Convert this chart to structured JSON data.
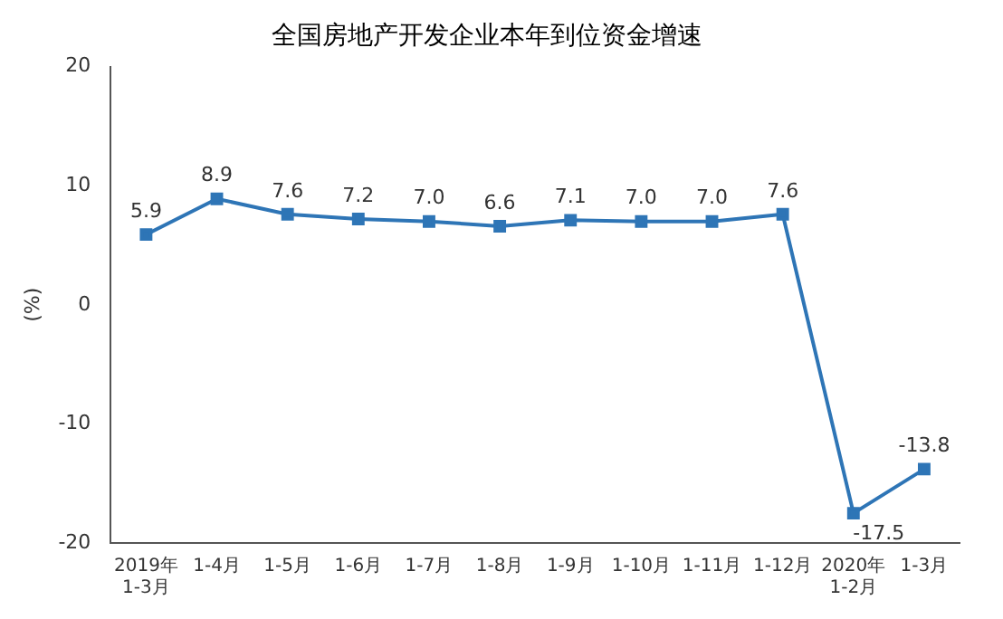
{
  "chart_data": {
    "type": "line",
    "title": "全国房地产开发企业本年到位资金增速",
    "ylabel": "(%)",
    "categories": [
      "2019年\n1-3月",
      "1-4月",
      "1-5月",
      "1-6月",
      "1-7月",
      "1-8月",
      "1-9月",
      "1-10月",
      "1-11月",
      "1-12月",
      "2020年\n1-2月",
      "1-3月"
    ],
    "series": [
      {
        "color": "#2e75b6",
        "values": [
          5.9,
          8.9,
          7.6,
          7.2,
          7.0,
          6.6,
          7.1,
          7.0,
          7.0,
          7.6,
          -17.5,
          -13.8
        ],
        "value_labels": [
          "5.9",
          "8.9",
          "7.6",
          "7.2",
          "7.0",
          "6.6",
          "7.1",
          "7.0",
          "7.0",
          "7.6",
          "-17.5",
          "-13.8"
        ]
      }
    ],
    "ylim": [
      -20,
      20
    ],
    "yticks": [
      -20,
      -10,
      0,
      10,
      20
    ],
    "grid": false,
    "legend": false,
    "marker": "square",
    "line_style": "solid"
  }
}
